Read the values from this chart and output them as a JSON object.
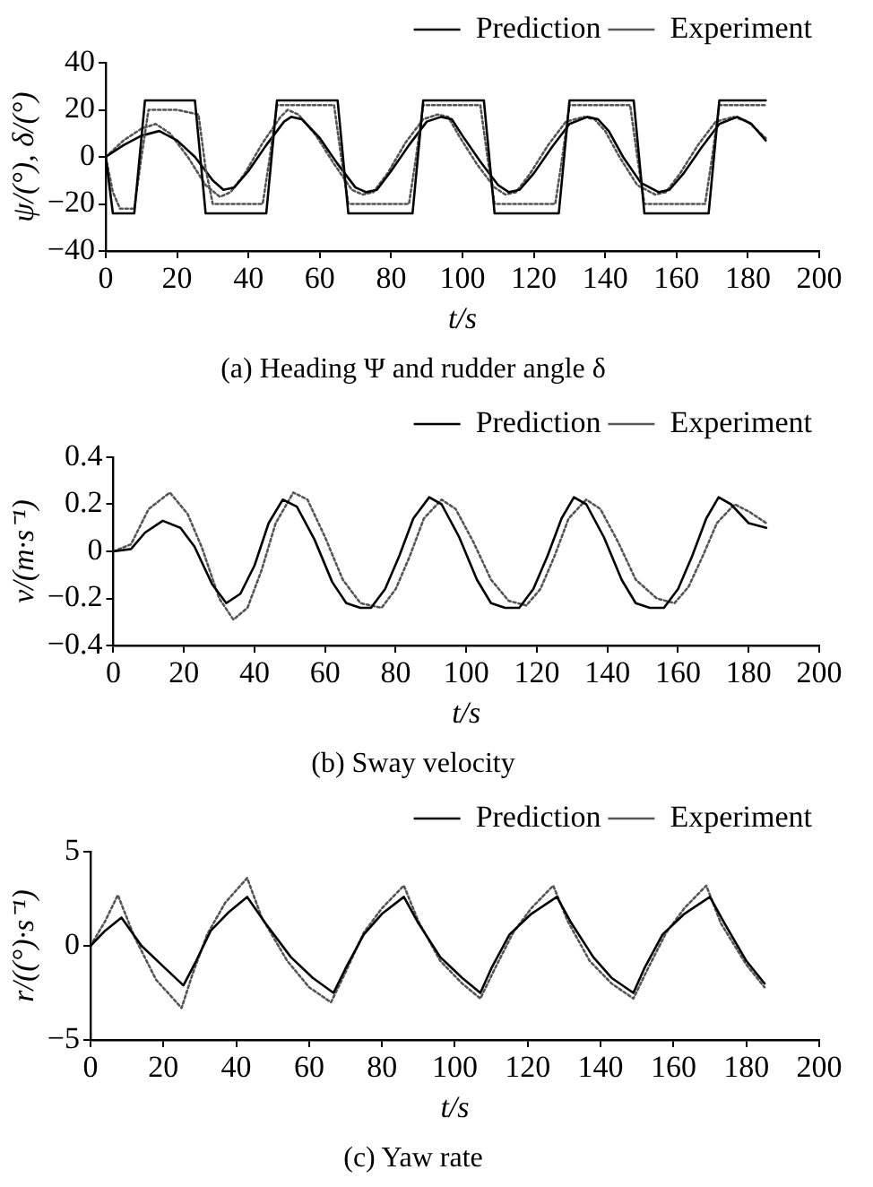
{
  "chart_data": [
    {
      "type": "line",
      "title": "(a) Heading Ψ and rudder angle δ",
      "xlabel": "t/s",
      "ylabel": "ψ/(°), δ/(°)",
      "xlim": [
        0,
        200
      ],
      "xticks": [
        0,
        20,
        40,
        60,
        80,
        100,
        120,
        140,
        160,
        180,
        200
      ],
      "ylim": [
        -40,
        40
      ],
      "yticks": [
        {
          "value": -40,
          "label": "−40"
        },
        {
          "value": -20,
          "label": "−20"
        },
        0,
        20,
        40
      ],
      "legend": "top right",
      "grid": false,
      "marker": "none",
      "series": [
        {
          "name": "Prediction",
          "color": "#000000",
          "line_style": "solid",
          "x": [
            0,
            2,
            8,
            11,
            25,
            28,
            45,
            48,
            65,
            68,
            86,
            89,
            106,
            109,
            127,
            130,
            148,
            151,
            169,
            172,
            185
          ],
          "values": [
            0,
            -24,
            -24,
            24,
            24,
            -24,
            -24,
            24,
            24,
            -24,
            -24,
            24,
            24,
            -24,
            -24,
            24,
            24,
            -24,
            -24,
            24,
            24
          ]
        },
        {
          "name": "Experiment",
          "color": "#555555",
          "line_style": "dotted",
          "x": [
            0,
            2,
            4,
            8,
            10,
            12,
            20,
            26,
            28,
            30,
            44,
            46,
            48,
            64,
            66,
            68,
            85,
            87,
            89,
            105,
            107,
            109,
            126,
            128,
            130,
            147,
            149,
            151,
            168,
            170,
            172,
            185
          ],
          "values": [
            0,
            -15,
            -22,
            -22,
            0,
            20,
            20,
            18,
            -5,
            -20,
            -20,
            0,
            22,
            22,
            0,
            -20,
            -20,
            0,
            22,
            22,
            0,
            -20,
            -20,
            0,
            22,
            22,
            0,
            -20,
            -20,
            0,
            22,
            22
          ]
        },
        {
          "color": "#000000",
          "line_style": "solid",
          "x": [
            0,
            5,
            10,
            15,
            20,
            25,
            30,
            33,
            36,
            40,
            45,
            50,
            52,
            55,
            60,
            65,
            70,
            73,
            76,
            80,
            85,
            90,
            94,
            97,
            100,
            105,
            110,
            113,
            116,
            120,
            125,
            130,
            135,
            138,
            141,
            145,
            150,
            155,
            158,
            162,
            167,
            172,
            177,
            181,
            185
          ],
          "values": [
            0,
            5,
            9,
            11,
            7,
            0,
            -10,
            -14,
            -13,
            -6,
            5,
            15,
            17,
            16,
            8,
            -3,
            -13,
            -15,
            -14,
            -6,
            5,
            15,
            17,
            16,
            9,
            -2,
            -12,
            -15,
            -14,
            -7,
            4,
            14,
            17,
            16,
            11,
            0,
            -11,
            -15,
            -14,
            -7,
            4,
            14,
            17,
            14,
            7
          ]
        },
        {
          "color": "#555555",
          "line_style": "dotted",
          "x": [
            0,
            5,
            10,
            14,
            18,
            23,
            28,
            32,
            35,
            39,
            44,
            49,
            51,
            54,
            59,
            64,
            69,
            72,
            75,
            79,
            84,
            89,
            93,
            96,
            99,
            104,
            109,
            112,
            115,
            119,
            124,
            129,
            134,
            137,
            140,
            144,
            149,
            154,
            157,
            161,
            166,
            171,
            176,
            180,
            185
          ],
          "values": [
            0,
            7,
            12,
            14,
            10,
            0,
            -12,
            -17,
            -15,
            -7,
            6,
            17,
            20,
            18,
            9,
            -3,
            -14,
            -16,
            -15,
            -7,
            6,
            16,
            18,
            17,
            9,
            -3,
            -13,
            -16,
            -15,
            -7,
            5,
            15,
            17,
            16,
            11,
            0,
            -12,
            -16,
            -15,
            -7,
            5,
            15,
            17,
            15,
            8
          ]
        }
      ]
    },
    {
      "type": "line",
      "title": "(b) Sway velocity",
      "xlabel": "t/s",
      "ylabel": "v/(m·s⁻¹)",
      "xlim": [
        0,
        200
      ],
      "xticks": [
        0,
        20,
        40,
        60,
        80,
        100,
        120,
        140,
        160,
        180,
        200
      ],
      "ylim": [
        -0.4,
        0.4
      ],
      "yticks": [
        {
          "value": -0.4,
          "label": "−0.4"
        },
        {
          "value": -0.2,
          "label": "−0.2"
        },
        0,
        0.2,
        0.4
      ],
      "legend": "top right",
      "grid": false,
      "marker": "none",
      "series": [
        {
          "name": "Prediction",
          "color": "#000000",
          "line_style": "solid",
          "x": [
            0,
            5,
            9,
            14,
            19,
            23,
            28,
            32,
            36,
            40,
            44,
            48,
            52,
            57,
            62,
            66,
            70,
            73,
            77,
            81,
            85,
            89.5,
            93,
            98,
            103,
            107,
            111,
            115,
            119,
            123,
            127,
            130.5,
            134,
            139,
            144,
            148,
            152,
            156,
            160,
            164,
            168,
            171.5,
            175,
            180,
            185
          ],
          "values": [
            0,
            0.01,
            0.08,
            0.13,
            0.1,
            0.02,
            -0.14,
            -0.22,
            -0.18,
            -0.06,
            0.12,
            0.22,
            0.19,
            0.05,
            -0.13,
            -0.22,
            -0.24,
            -0.24,
            -0.16,
            -0.02,
            0.14,
            0.23,
            0.2,
            0.06,
            -0.12,
            -0.22,
            -0.24,
            -0.24,
            -0.16,
            -0.02,
            0.14,
            0.23,
            0.2,
            0.06,
            -0.12,
            -0.22,
            -0.24,
            -0.24,
            -0.16,
            -0.02,
            0.14,
            0.23,
            0.2,
            0.12,
            0.1
          ]
        },
        {
          "name": "Experiment",
          "color": "#555555",
          "line_style": "dotted",
          "x": [
            0,
            5,
            10,
            16,
            21,
            25,
            30,
            34,
            38,
            42,
            46,
            51,
            55,
            60,
            65,
            70,
            76,
            80,
            84,
            88,
            93,
            97,
            102,
            107,
            112,
            117,
            121,
            125,
            129,
            134,
            138,
            143,
            148,
            154,
            159,
            163,
            167,
            171,
            176,
            180,
            185
          ],
          "values": [
            0,
            0.03,
            0.18,
            0.25,
            0.16,
            0.02,
            -0.2,
            -0.29,
            -0.24,
            -0.08,
            0.12,
            0.25,
            0.22,
            0.06,
            -0.12,
            -0.22,
            -0.24,
            -0.16,
            -0.02,
            0.14,
            0.22,
            0.18,
            0.04,
            -0.12,
            -0.21,
            -0.23,
            -0.16,
            -0.02,
            0.14,
            0.22,
            0.18,
            0.04,
            -0.12,
            -0.2,
            -0.22,
            -0.15,
            -0.02,
            0.12,
            0.2,
            0.17,
            0.12
          ]
        }
      ]
    },
    {
      "type": "line",
      "title": "(c) Yaw rate",
      "xlabel": "t/s",
      "ylabel": "r/((°)·s⁻¹)",
      "xlim": [
        0,
        200
      ],
      "xticks": [
        0,
        20,
        40,
        60,
        80,
        100,
        120,
        140,
        160,
        180,
        200
      ],
      "ylim": [
        -5,
        5
      ],
      "yticks": [
        {
          "value": -5,
          "label": "−5"
        },
        0,
        5
      ],
      "legend": "top right",
      "grid": false,
      "marker": "none",
      "series": [
        {
          "name": "Prediction",
          "color": "#000000",
          "line_style": "solid",
          "x": [
            0,
            4,
            8.5,
            14,
            20,
            25.5,
            29,
            33,
            38,
            43,
            48,
            55,
            61,
            66.7,
            70,
            75,
            80,
            86,
            90,
            96,
            102,
            107,
            110,
            115,
            121,
            128,
            132,
            138,
            143,
            149,
            152,
            157,
            163,
            170,
            174,
            180,
            185
          ],
          "values": [
            0,
            0.8,
            1.5,
            0,
            -1.1,
            -2.1,
            -0.8,
            0.8,
            1.8,
            2.6,
            1.2,
            -0.6,
            -1.7,
            -2.5,
            -1.2,
            0.6,
            1.7,
            2.6,
            1.2,
            -0.6,
            -1.7,
            -2.5,
            -1.2,
            0.6,
            1.7,
            2.6,
            1.2,
            -0.6,
            -1.7,
            -2.5,
            -1.2,
            0.6,
            1.7,
            2.6,
            1.2,
            -0.8,
            -2
          ]
        },
        {
          "name": "Experiment",
          "color": "#555555",
          "line_style": "dotted",
          "x": [
            0,
            4,
            7.5,
            12,
            18,
            25,
            28,
            32,
            37,
            43,
            47,
            54,
            60,
            66,
            70,
            75,
            80,
            86,
            90,
            96,
            102,
            107,
            111,
            116,
            121,
            127,
            131,
            137,
            143,
            149,
            153,
            158,
            163,
            169,
            173,
            180,
            185
          ],
          "values": [
            0,
            1.3,
            2.7,
            0.5,
            -1.8,
            -3.3,
            -1.5,
            0.6,
            2.3,
            3.6,
            1.5,
            -0.8,
            -2.2,
            -3,
            -1.4,
            0.7,
            2,
            3.2,
            1.3,
            -0.8,
            -2,
            -2.8,
            -1.2,
            0.7,
            2,
            3.2,
            1.3,
            -0.8,
            -2,
            -2.8,
            -1.2,
            0.7,
            2,
            3.2,
            1.2,
            -1,
            -2.2
          ]
        }
      ]
    }
  ]
}
